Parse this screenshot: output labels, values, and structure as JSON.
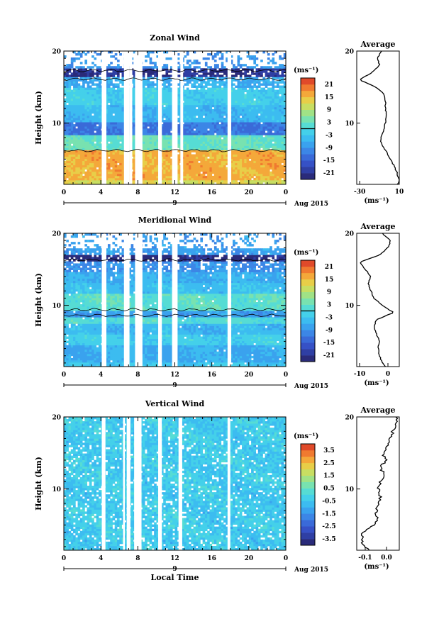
{
  "figure": {
    "x_axis_label": "Local Time",
    "date_label": "Aug 2015",
    "second_axis_marker": "9"
  },
  "chart_data": [
    {
      "type": "heatmap",
      "title": "Zonal Wind",
      "ylabel": "Height (km)",
      "xlabel": "",
      "x_ticks": [
        "0",
        "4",
        "8",
        "12",
        "16",
        "20",
        "0"
      ],
      "xlim": [
        0,
        24
      ],
      "y_ticks": [
        "10",
        "20"
      ],
      "ylim": [
        1.5,
        20
      ],
      "colorbar": {
        "unit": "(ms⁻¹)",
        "ticks": [
          "21",
          "15",
          "9",
          "3",
          "-3",
          "-9",
          "-15",
          "-21"
        ],
        "range": [
          -24,
          24
        ]
      },
      "data_gaps_hours": [
        [
          4.1,
          4.6
        ],
        [
          6.5,
          7.1
        ],
        [
          7.1,
          7.4
        ],
        [
          7.7,
          8.5
        ],
        [
          10.2,
          10.6
        ],
        [
          11.7,
          12.3
        ],
        [
          12.6,
          12.9
        ],
        [
          17.7,
          18.1
        ]
      ],
      "profile": {
        "title": "Average",
        "xlabel": "(ms⁻¹)",
        "x_ticks": [
          "-30",
          "10"
        ],
        "xlim": [
          -33,
          10
        ],
        "y_ticks": [
          "10",
          "20"
        ],
        "heights_km": [
          1.5,
          2,
          3,
          4,
          5,
          6,
          7,
          8,
          9,
          10,
          11,
          12,
          13,
          14,
          15,
          16,
          17,
          18,
          19,
          20
        ],
        "values": [
          8,
          10,
          8,
          5,
          1,
          -3,
          -8,
          -9,
          -6,
          -4,
          -3,
          -4,
          -4,
          -5,
          -14,
          -30,
          -18,
          -10,
          -12,
          -8
        ]
      }
    },
    {
      "type": "heatmap",
      "title": "Meridional Wind",
      "ylabel": "Height (km)",
      "xlabel": "",
      "x_ticks": [
        "0",
        "4",
        "8",
        "12",
        "16",
        "20",
        "0"
      ],
      "xlim": [
        0,
        24
      ],
      "y_ticks": [
        "10",
        "20"
      ],
      "ylim": [
        1.5,
        20
      ],
      "colorbar": {
        "unit": "(ms⁻¹)",
        "ticks": [
          "21",
          "15",
          "9",
          "3",
          "-3",
          "-9",
          "-15",
          "-21"
        ],
        "range": [
          -24,
          24
        ]
      },
      "data_gaps_hours": [
        [
          4.1,
          4.6
        ],
        [
          6.5,
          7.1
        ],
        [
          7.7,
          8.5
        ],
        [
          10.2,
          10.6
        ],
        [
          11.7,
          12.3
        ],
        [
          17.7,
          18.1
        ]
      ],
      "profile": {
        "title": "Average",
        "xlabel": "(ms⁻¹)",
        "x_ticks": [
          "-10",
          "0"
        ],
        "xlim": [
          -11,
          4
        ],
        "y_ticks": [
          "10",
          "20"
        ],
        "heights_km": [
          1.5,
          2,
          3,
          4,
          5,
          6,
          7,
          8,
          9,
          10,
          11,
          12,
          13,
          14,
          15,
          16,
          17,
          18,
          19,
          20
        ],
        "values": [
          -1,
          -2,
          -3,
          -3.5,
          -3,
          -4,
          -5,
          -4,
          2,
          -2,
          -5,
          -6,
          -7,
          -6,
          -8,
          -10,
          -3,
          0,
          1,
          -2
        ]
      }
    },
    {
      "type": "heatmap",
      "title": "Vertical Wind",
      "ylabel": "Height (km)",
      "xlabel": "Local Time",
      "x_ticks": [
        "0",
        "4",
        "8",
        "12",
        "16",
        "20",
        "0"
      ],
      "xlim": [
        0,
        24
      ],
      "y_ticks": [
        "10",
        "20"
      ],
      "ylim": [
        1.5,
        20
      ],
      "colorbar": {
        "unit": "(ms⁻¹)",
        "ticks": [
          "3.5",
          "2.5",
          "1.5",
          "0.5",
          "-0.5",
          "-1.5",
          "-2.5",
          "-3.5"
        ],
        "range": [
          -4,
          4
        ]
      },
      "data_gaps_hours": [
        [
          4.1,
          4.5
        ],
        [
          6.4,
          6.6
        ],
        [
          6.8,
          7.2
        ],
        [
          7.6,
          8.4
        ],
        [
          10.2,
          10.6
        ],
        [
          12.4,
          12.8
        ],
        [
          17.7,
          18.0
        ]
      ],
      "profile": {
        "title": "Average",
        "xlabel": "(ms⁻¹)",
        "x_ticks": [
          "-0.1",
          "0.0"
        ],
        "xlim": [
          -0.14,
          0.06
        ],
        "y_ticks": [
          "10",
          "20"
        ],
        "heights_km": [
          1.5,
          2,
          3,
          4,
          5,
          6,
          7,
          8,
          9,
          10,
          11,
          12,
          13,
          14,
          15,
          16,
          17,
          18,
          19,
          20
        ],
        "values": [
          -0.08,
          -0.1,
          -0.12,
          -0.11,
          -0.06,
          -0.04,
          -0.05,
          -0.04,
          -0.03,
          -0.04,
          -0.03,
          -0.01,
          -0.03,
          0.0,
          -0.02,
          0.01,
          0.02,
          0.03,
          0.04,
          0.05
        ]
      }
    }
  ]
}
